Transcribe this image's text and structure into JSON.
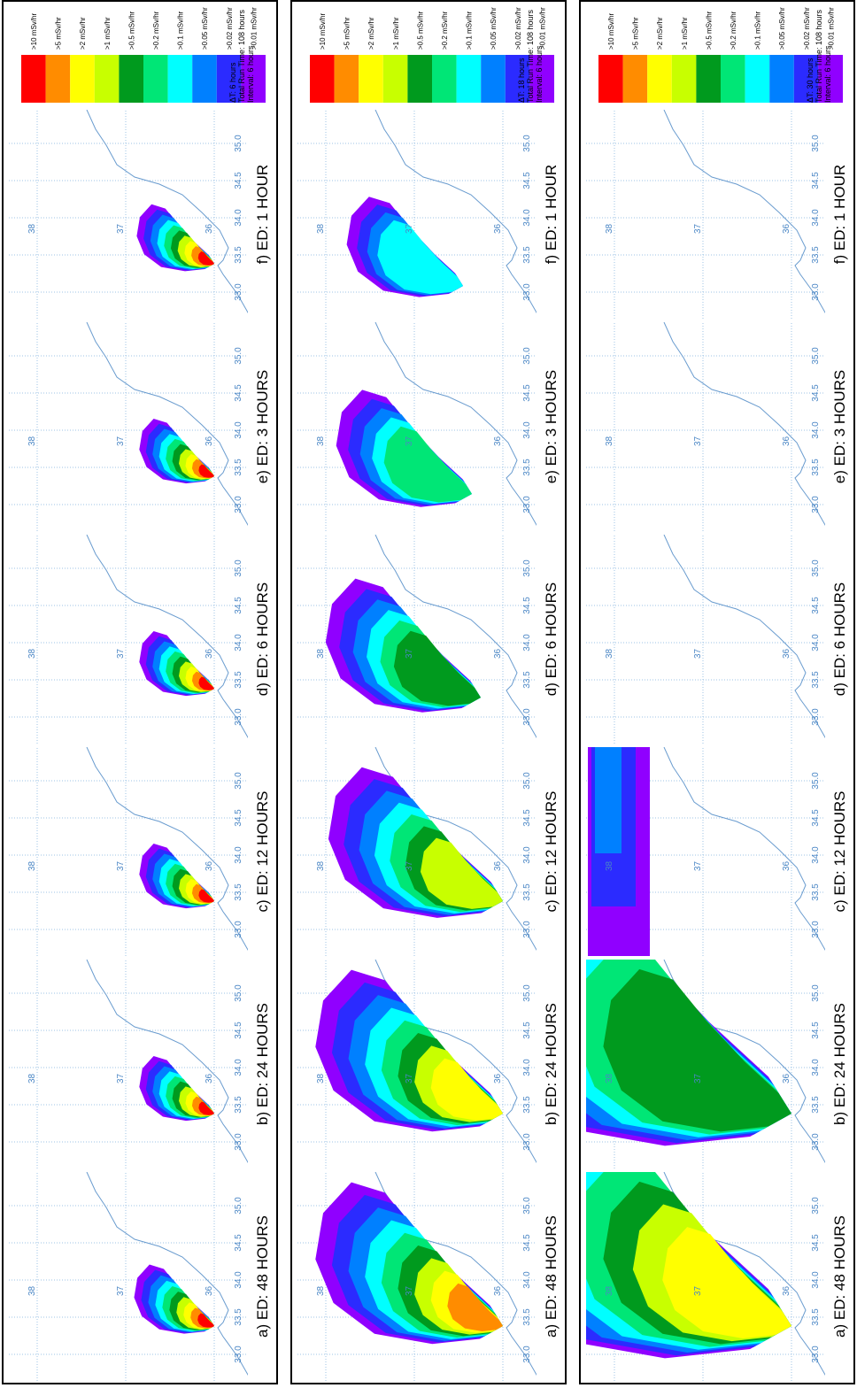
{
  "map_labels": {
    "latitudes": [
      "38",
      "37",
      "36"
    ],
    "longitudes": [
      "33.0",
      "33.5",
      "34.0",
      "34.5",
      "35.0"
    ]
  },
  "legend": {
    "labels": [
      ">10 mSv/hr",
      ">5 mSv/hr",
      ">2 mSv/hr",
      ">1 mSv/hr",
      ">0.5 mSv/hr",
      ">0.2 mSv/hr",
      ">0.1 mSv/hr",
      ">0.05 mSv/hr",
      ">0.02 mSv/hr",
      ">0.01 mSv/hr"
    ],
    "colors": [
      "#ff0000",
      "#ff8c00",
      "#ffff00",
      "#c8ff00",
      "#009a1e",
      "#00e676",
      "#00ffff",
      "#0080ff",
      "#2b2bff",
      "#9000ff"
    ]
  },
  "panels": [
    {
      "captions": [
        "a) ED: 48 HOURS",
        "b) ED: 24 HOURS",
        "c) ED: 12 HOURS",
        "d) ED: 6 HOURS",
        "e) ED: 3 HOURS",
        "f) ED: 1 HOUR"
      ],
      "info": [
        "ΔT: 6 hours",
        "Total Run Time: 108 hours",
        "Interval: 6 hours"
      ]
    },
    {
      "captions": [
        "a) ED: 48 HOURS",
        "b) ED: 24 HOURS",
        "c) ED: 12 HOURS",
        "d) ED: 6 HOURS",
        "e) ED: 3 HOURS",
        "f) ED: 1 HOUR"
      ],
      "info": [
        "ΔT: 18 hours",
        "Total Run Time: 108 hours",
        "Interval: 6 hours"
      ]
    },
    {
      "captions": [
        "a) ED: 48 HOURS",
        "b) ED: 24 HOURS",
        "c) ED: 12 HOURS",
        "d) ED: 6 HOURS",
        "e) ED: 3 HOURS",
        "f) ED: 1 HOUR"
      ],
      "info": [
        "ΔT: 30 hours",
        "Total Run Time: 108 hours",
        "Interval: 6 hours"
      ]
    }
  ]
}
